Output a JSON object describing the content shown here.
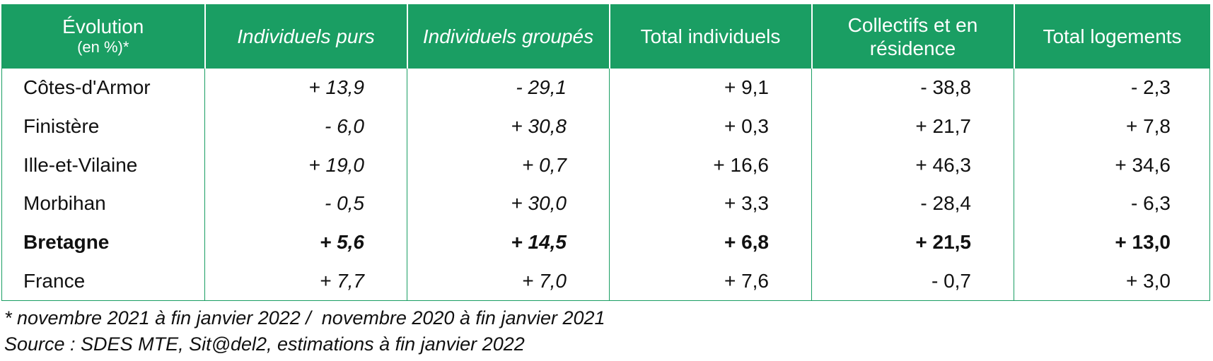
{
  "header": {
    "col0_main": "Évolution",
    "col0_sub": "(en %)*",
    "col1": "Individuels purs",
    "col2": "Individuels groupés",
    "col3": "Total individuels",
    "col4": "Collectifs et en résidence",
    "col5": "Total logements"
  },
  "rows": [
    {
      "label": "Côtes-d'Armor",
      "v1": "+ 13,9",
      "v2": "- 29,1",
      "v3": "+ 9,1",
      "v4": "- 38,8",
      "v5": "- 2,3"
    },
    {
      "label": "Finistère",
      "v1": "- 6,0",
      "v2": "+ 30,8",
      "v3": "+ 0,3",
      "v4": "+ 21,7",
      "v5": "+ 7,8"
    },
    {
      "label": "Ille-et-Vilaine",
      "v1": "+ 19,0",
      "v2": "+ 0,7",
      "v3": "+ 16,6",
      "v4": "+ 46,3",
      "v5": "+ 34,6"
    },
    {
      "label": "Morbihan",
      "v1": "- 0,5",
      "v2": "+ 30,0",
      "v3": "+ 3,3",
      "v4": "- 28,4",
      "v5": "- 6,3"
    },
    {
      "label": "Bretagne",
      "v1": "+ 5,6",
      "v2": "+ 14,5",
      "v3": "+ 6,8",
      "v4": "+ 21,5",
      "v5": "+ 13,0"
    },
    {
      "label": "France",
      "v1": "+ 7,7",
      "v2": "+ 7,0",
      "v3": "+ 7,6",
      "v4": "- 0,7",
      "v5": "+ 3,0"
    }
  ],
  "notes": {
    "period": "* novembre 2021 à fin janvier 2022 /  novembre 2020 à fin janvier 2021",
    "source": "Source : SDES MTE, Sit@del2, estimations à fin janvier 2022"
  },
  "colors": {
    "header_bg": "#1a9e63",
    "header_text": "#ffffff",
    "border": "#1a9e63"
  }
}
